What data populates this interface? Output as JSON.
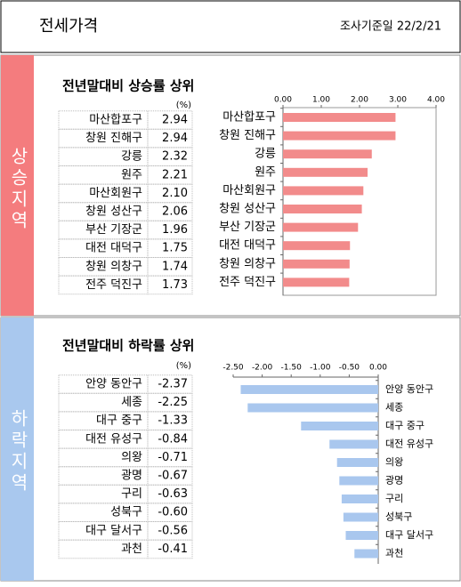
{
  "header": {
    "title": "전세가격",
    "date": "조사기준일 22/2/21"
  },
  "sections": [
    {
      "label": "상승지역"
    },
    {
      "label": "하락지역"
    }
  ],
  "chart_data": [
    {
      "type": "bar",
      "orientation": "horizontal",
      "title": "전년말대비 상승률 상위",
      "unit": "(%)",
      "categories": [
        "마산합포구",
        "창원 진해구",
        "강릉",
        "원주",
        "마산회원구",
        "창원 성산구",
        "부산 기장군",
        "대전 대덕구",
        "창원 의창구",
        "전주 덕진구"
      ],
      "values": [
        2.94,
        2.94,
        2.32,
        2.21,
        2.1,
        2.06,
        1.96,
        1.75,
        1.74,
        1.73
      ],
      "value_labels": [
        "2.94",
        "2.94",
        "2.32",
        "2.21",
        "2.10",
        "2.06",
        "1.96",
        "1.75",
        "1.74",
        "1.73"
      ],
      "color": "#f28b8b",
      "xlim": [
        0,
        4
      ],
      "xticks": [
        {
          "value": 0,
          "label": "0.00"
        },
        {
          "value": 1,
          "label": "1.00"
        },
        {
          "value": 2,
          "label": "2.00"
        },
        {
          "value": 3,
          "label": "3.00"
        },
        {
          "value": 4,
          "label": "4.00"
        }
      ]
    },
    {
      "type": "bar",
      "orientation": "horizontal",
      "title": "전년말대비 하락률 상위",
      "unit": "(%)",
      "categories": [
        "안양 동안구",
        "세종",
        "대구 중구",
        "대전 유성구",
        "의왕",
        "광명",
        "구리",
        "성북구",
        "대구 달서구",
        "과천"
      ],
      "values": [
        -2.37,
        -2.25,
        -1.33,
        -0.84,
        -0.71,
        -0.67,
        -0.63,
        -0.6,
        -0.56,
        -0.41
      ],
      "value_labels": [
        "-2.37",
        "-2.25",
        "-1.33",
        "-0.84",
        "-0.71",
        "-0.67",
        "-0.63",
        "-0.60",
        "-0.56",
        "-0.41"
      ],
      "color": "#a9c7ee",
      "xlim": [
        -2.5,
        0
      ],
      "xticks": [
        {
          "value": -2.5,
          "label": "-2.50"
        },
        {
          "value": -2,
          "label": "-2.00"
        },
        {
          "value": -1.5,
          "label": "-1.50"
        },
        {
          "value": -1,
          "label": "-1.00"
        },
        {
          "value": -0.5,
          "label": "-0.50"
        },
        {
          "value": 0,
          "label": "0.00"
        }
      ]
    }
  ]
}
